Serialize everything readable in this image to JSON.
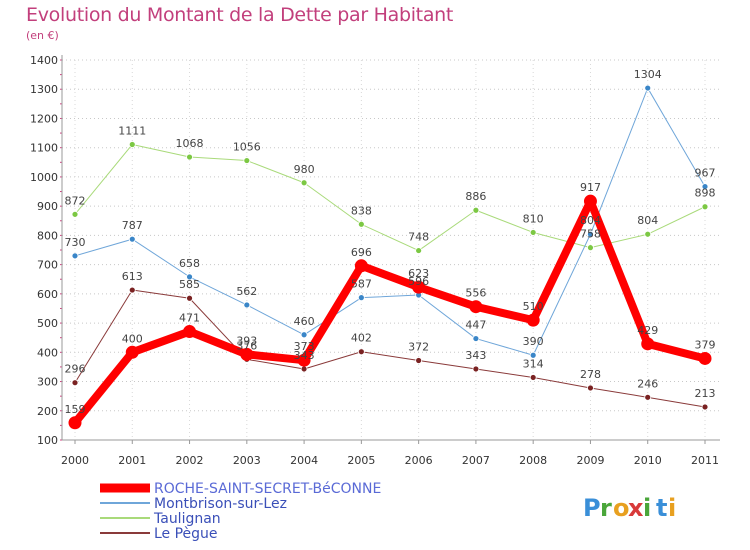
{
  "title": "Evolution du Montant de la Dette par Habitant",
  "subtitle": "(en €)",
  "brand": {
    "letters": [
      "P",
      "r",
      "o",
      "x",
      "i",
      "t",
      "i"
    ],
    "colors": [
      "#3a8fd8",
      "#4aa63a",
      "#e8a020",
      "#d83a3a",
      "#4aa63a",
      "#3a8fd8",
      "#e8a020"
    ]
  },
  "colors": {
    "title": "#c23f7c",
    "axis_text": "#333333",
    "grid": "#c8c8c8",
    "background_top": "#ffffff",
    "background_bottom": "#e4e4e4"
  },
  "chart_data": {
    "type": "line",
    "title": "Evolution du Montant de la Dette par Habitant",
    "subtitle": "(en €)",
    "x": [
      "2000",
      "2001",
      "2002",
      "2003",
      "2004",
      "2005",
      "2006",
      "2007",
      "2008",
      "2009",
      "2010",
      "2011"
    ],
    "ylim": [
      100,
      1400
    ],
    "yticks": [
      100,
      200,
      300,
      400,
      500,
      600,
      700,
      800,
      900,
      1000,
      1100,
      1200,
      1300,
      1400
    ],
    "grid": "horizontal",
    "legend_position": "bottom-left",
    "series": [
      {
        "name": "ROCHE-SAINT-SECRET-BéCONNE",
        "values": [
          159,
          400,
          471,
          393,
          373,
          696,
          623,
          556,
          510,
          917,
          429,
          379
        ],
        "labels": [
          "159",
          "400",
          "471",
          "393",
          "373",
          "696",
          "623",
          "556",
          "510",
          "917",
          "429",
          "379"
        ],
        "color": "#ff0000",
        "marker_color": "#ff0000",
        "width": 8,
        "legend_text_color": "#5a6ad6"
      },
      {
        "name": "Montbrison-sur-Lez",
        "values": [
          730,
          787,
          658,
          562,
          460,
          587,
          596,
          447,
          390,
          804,
          1304,
          967
        ],
        "labels": [
          "730",
          "787",
          "658",
          "562",
          "460",
          "587",
          "596",
          "447",
          "390",
          "804",
          "1304",
          "967"
        ],
        "color": "#6fa6d9",
        "marker_color": "#3a86c8",
        "width": 1,
        "legend_text_color": "#3a4fb8"
      },
      {
        "name": "Taulignan",
        "values": [
          872,
          1111,
          1068,
          1056,
          980,
          838,
          748,
          886,
          810,
          758,
          804,
          898
        ],
        "labels": [
          "872",
          "1111",
          "1068",
          "1056",
          "980",
          "838",
          "748",
          "886",
          "810",
          "758",
          "804",
          "898"
        ],
        "color": "#a9da7a",
        "marker_color": "#7cc843",
        "width": 1,
        "legend_text_color": "#3a4fb8"
      },
      {
        "name": "Le Pègue",
        "values": [
          296,
          613,
          585,
          376,
          343,
          402,
          372,
          343,
          314,
          278,
          246,
          213
        ],
        "labels": [
          "296",
          "613",
          "585",
          "376",
          "343",
          "402",
          "372",
          "343",
          "314",
          "278",
          "246",
          "213"
        ],
        "color": "#8a3a3a",
        "marker_color": "#7a2222",
        "width": 1,
        "legend_text_color": "#3a4fb8"
      }
    ]
  }
}
